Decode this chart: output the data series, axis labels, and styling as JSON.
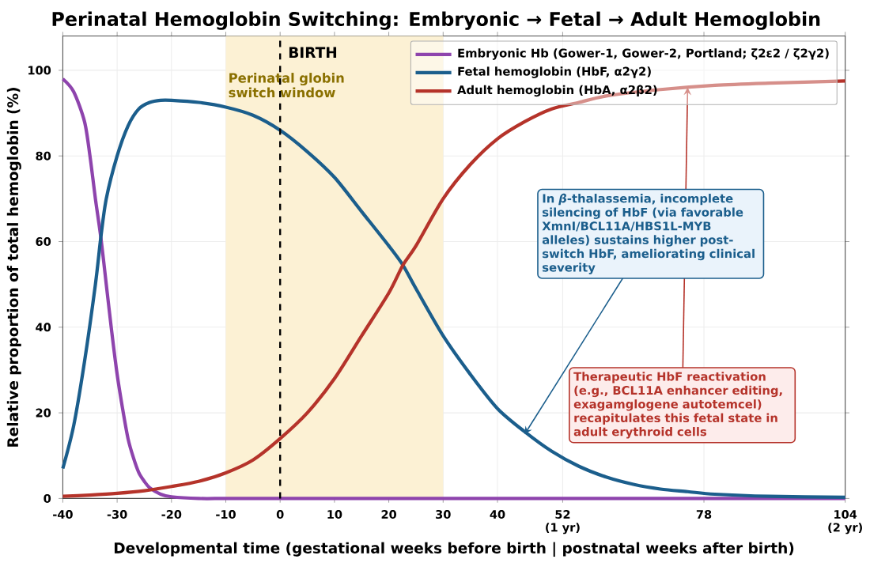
{
  "chart_data": {
    "type": "line",
    "title": "Perinatal Hemoglobin Switching: Embryonic → Fetal → Adult Hemoglobin",
    "xlabel": "Developmental time (gestational weeks before birth  |  postnatal weeks after birth)",
    "ylabel": "Relative proportion of total hemoglobin (%)",
    "xlim": [
      -40,
      104
    ],
    "ylim": [
      0,
      108
    ],
    "xticks": [
      -40,
      -30,
      -20,
      -10,
      0,
      10,
      20,
      30,
      40,
      {
        "value": 52,
        "label": "52\n(1 yr)"
      },
      78,
      {
        "value": 104,
        "label": "104\n(2 yr)"
      }
    ],
    "yticks": [
      0,
      20,
      40,
      60,
      80,
      100
    ],
    "grid": true,
    "legend": "top right",
    "series": [
      {
        "name": "Embryonic Hb (Gower-1, Gower-2, Portland; ζ2ε2 / ζ2γ2)",
        "color": "#8e44ad",
        "x": [
          -40,
          -38,
          -36,
          -35,
          -34,
          -33,
          -32,
          -31,
          -30,
          -29,
          -28,
          -27,
          -26,
          -25,
          -24,
          -22,
          -20,
          -15,
          -10,
          0,
          20,
          50,
          104
        ],
        "values": [
          98,
          95,
          88,
          80,
          70,
          61,
          50,
          39,
          29,
          21,
          14,
          9.5,
          6,
          4,
          2.5,
          1,
          0.4,
          0,
          0,
          0,
          0,
          0,
          0
        ]
      },
      {
        "name": "Fetal hemoglobin (HbF, α2γ2)",
        "color": "#1b5e8c",
        "x": [
          -40,
          -38,
          -36,
          -34,
          -33,
          -32,
          -30,
          -28,
          -26,
          -24,
          -22,
          -20,
          -15,
          -10,
          -5,
          0,
          5,
          10,
          15,
          20,
          22.6,
          25,
          30,
          35,
          40,
          45,
          50,
          55,
          60,
          65,
          70,
          75,
          80,
          90,
          104
        ],
        "values": [
          7,
          17,
          32,
          50,
          61,
          70,
          80,
          87,
          91,
          92.5,
          93,
          93,
          92.5,
          91.4,
          89.5,
          86,
          81,
          75,
          67,
          59,
          54.5,
          49,
          38,
          29,
          21,
          15.6,
          11,
          7.5,
          5,
          3.3,
          2.2,
          1.6,
          1,
          0.5,
          0.3
        ]
      },
      {
        "name": "Adult hemoglobin (HbA, α2β2)",
        "color": "#b5332a",
        "x": [
          -40,
          -35,
          -30,
          -25,
          -20,
          -15,
          -10,
          -5,
          0,
          5,
          10,
          15,
          20,
          22.6,
          25,
          30,
          35,
          40,
          45,
          50,
          55,
          60,
          70,
          80,
          90,
          104
        ],
        "values": [
          0.5,
          0.8,
          1.2,
          1.8,
          2.8,
          4,
          6,
          9,
          14,
          20,
          28,
          38,
          48,
          54.5,
          59,
          70,
          78,
          84,
          88,
          91,
          92.5,
          94,
          95.5,
          96.5,
          97,
          97.5
        ]
      }
    ],
    "ref_lines": [
      {
        "axis": "x",
        "value": 0,
        "label": "BIRTH",
        "color": "#000000",
        "line_style": "dashed"
      }
    ],
    "bands": [
      {
        "axis": "x",
        "from": -10,
        "to": 30,
        "label": "Perinatal globin switch window",
        "color": "#fcf1d4"
      }
    ],
    "annotations": [
      {
        "text": "In *β*-thalassemia, incomplete silencing of HbF (via favorable XmnI/BCL11A/HBS1L-MYB alleles) sustains higher post-switch HbF, ameliorating clinical severity",
        "x": 45,
        "y": 15
      },
      {
        "text": "Therapeutic HbF reactivation (e.g., BCL11A enhancer editing, exagamglogene autotemcel) recapitulates this fetal state in adult erythroid cells",
        "x": 75,
        "y": 96
      }
    ]
  }
}
